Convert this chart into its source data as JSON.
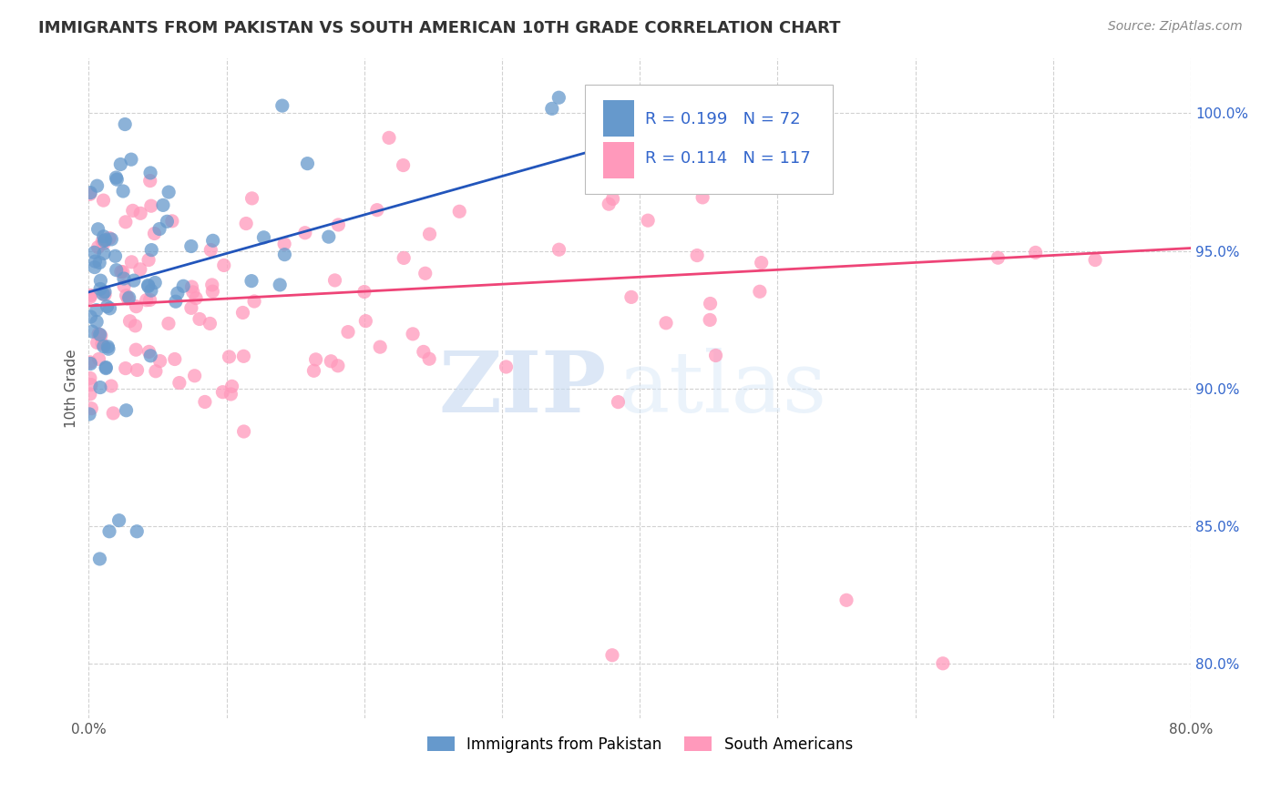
{
  "title": "IMMIGRANTS FROM PAKISTAN VS SOUTH AMERICAN 10TH GRADE CORRELATION CHART",
  "source": "Source: ZipAtlas.com",
  "ylabel": "10th Grade",
  "xlim": [
    0.0,
    0.8
  ],
  "ylim": [
    0.78,
    1.02
  ],
  "ytick_positions": [
    0.8,
    0.85,
    0.9,
    0.95,
    1.0
  ],
  "ytick_labels": [
    "80.0%",
    "85.0%",
    "90.0%",
    "95.0%",
    "100.0%"
  ],
  "xtick_positions": [
    0.0,
    0.1,
    0.2,
    0.3,
    0.4,
    0.5,
    0.6,
    0.7,
    0.8
  ],
  "xtick_labels": [
    "0.0%",
    "",
    "",
    "",
    "",
    "",
    "",
    "",
    "80.0%"
  ],
  "blue_R": "0.199",
  "blue_N": "72",
  "pink_R": "0.114",
  "pink_N": "117",
  "blue_color": "#6699CC",
  "pink_color": "#FF99BB",
  "blue_line_color": "#2255BB",
  "pink_line_color": "#EE4477",
  "legend_label_blue": "Immigrants from Pakistan",
  "legend_label_pink": "South Americans",
  "watermark_zip": "ZIP",
  "watermark_atlas": "atlas",
  "blue_line_x0": 0.0,
  "blue_line_x1": 0.42,
  "blue_line_y0": 0.935,
  "blue_line_y1": 0.994,
  "pink_line_x0": 0.0,
  "pink_line_x1": 0.8,
  "pink_line_y0": 0.93,
  "pink_line_y1": 0.951
}
